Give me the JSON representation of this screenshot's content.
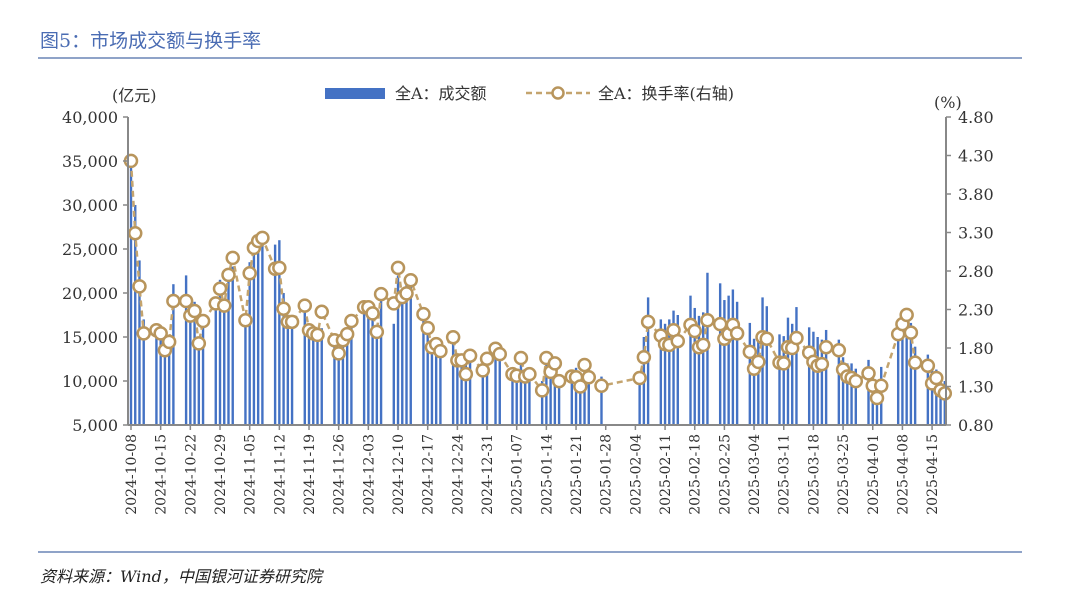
{
  "title": "图5：市场成交额与换手率",
  "source": "资料来源：Wind，中国银河证券研究院",
  "chart_data": {
    "type": "bar+line",
    "title": "图5：市场成交额与换手率",
    "left_axis": {
      "unit": "(亿元)",
      "range": [
        5000,
        40000
      ],
      "ticks": [
        "5,000",
        "10,000",
        "15,000",
        "20,000",
        "25,000",
        "30,000",
        "35,000",
        "40,000"
      ]
    },
    "right_axis": {
      "unit": "(%)",
      "range": [
        0.8,
        4.8
      ],
      "ticks": [
        "0.80",
        "1.30",
        "1.80",
        "2.30",
        "2.80",
        "3.30",
        "3.80",
        "4.30",
        "4.80"
      ]
    },
    "x_ticks": [
      "2024-10-08",
      "2024-10-15",
      "2024-10-22",
      "2024-10-29",
      "2024-11-05",
      "2024-11-12",
      "2024-11-19",
      "2024-11-26",
      "2024-12-03",
      "2024-12-10",
      "2024-12-17",
      "2024-12-24",
      "2024-12-31",
      "2025-01-07",
      "2025-01-14",
      "2025-01-21",
      "2025-01-28",
      "2025-02-04",
      "2025-02-11",
      "2025-02-18",
      "2025-02-25",
      "2025-03-04",
      "2025-03-11",
      "2025-03-18",
      "2025-03-25",
      "2025-04-01",
      "2025-04-08",
      "2025-04-15"
    ],
    "legend": {
      "position": "top",
      "bar": "全A：成交额",
      "line": "全A：换手率(右轴)"
    },
    "colors": {
      "bar": "#4472c4",
      "line": "#c4a46e",
      "marker_stroke": "#b8955c"
    },
    "dates": [
      "2024-10-08",
      "2024-10-09",
      "2024-10-10",
      "2024-10-11",
      "2024-10-14",
      "2024-10-15",
      "2024-10-16",
      "2024-10-17",
      "2024-10-18",
      "2024-10-21",
      "2024-10-22",
      "2024-10-23",
      "2024-10-24",
      "2024-10-25",
      "2024-10-28",
      "2024-10-29",
      "2024-10-30",
      "2024-10-31",
      "2024-11-01",
      "2024-11-04",
      "2024-11-05",
      "2024-11-06",
      "2024-11-07",
      "2024-11-08",
      "2024-11-11",
      "2024-11-12",
      "2024-11-13",
      "2024-11-14",
      "2024-11-15",
      "2024-11-18",
      "2024-11-19",
      "2024-11-20",
      "2024-11-21",
      "2024-11-22",
      "2024-11-25",
      "2024-11-26",
      "2024-11-27",
      "2024-11-28",
      "2024-11-29",
      "2024-12-02",
      "2024-12-03",
      "2024-12-04",
      "2024-12-05",
      "2024-12-06",
      "2024-12-09",
      "2024-12-10",
      "2024-12-11",
      "2024-12-12",
      "2024-12-13",
      "2024-12-16",
      "2024-12-17",
      "2024-12-18",
      "2024-12-19",
      "2024-12-20",
      "2024-12-23",
      "2024-12-24",
      "2024-12-25",
      "2024-12-26",
      "2024-12-27",
      "2024-12-30",
      "2024-12-31",
      "2025-01-02",
      "2025-01-03",
      "2025-01-06",
      "2025-01-07",
      "2025-01-08",
      "2025-01-09",
      "2025-01-10",
      "2025-01-13",
      "2025-01-14",
      "2025-01-15",
      "2025-01-16",
      "2025-01-17",
      "2025-01-20",
      "2025-01-21",
      "2025-01-22",
      "2025-01-23",
      "2025-01-24",
      "2025-01-27",
      "2025-02-05",
      "2025-02-06",
      "2025-02-07",
      "2025-02-10",
      "2025-02-11",
      "2025-02-12",
      "2025-02-13",
      "2025-02-14",
      "2025-02-17",
      "2025-02-18",
      "2025-02-19",
      "2025-02-20",
      "2025-02-21",
      "2025-02-24",
      "2025-02-25",
      "2025-02-26",
      "2025-02-27",
      "2025-02-28",
      "2025-03-03",
      "2025-03-04",
      "2025-03-05",
      "2025-03-06",
      "2025-03-07",
      "2025-03-10",
      "2025-03-11",
      "2025-03-12",
      "2025-03-13",
      "2025-03-14",
      "2025-03-17",
      "2025-03-18",
      "2025-03-19",
      "2025-03-20",
      "2025-03-21",
      "2025-03-24",
      "2025-03-25",
      "2025-03-26",
      "2025-03-27",
      "2025-03-28",
      "2025-03-31",
      "2025-04-01",
      "2025-04-02",
      "2025-04-03",
      "2025-04-07",
      "2025-04-08",
      "2025-04-09",
      "2025-04-10",
      "2025-04-11",
      "2025-04-14",
      "2025-04-15",
      "2025-04-16",
      "2025-04-17",
      "2025-04-18"
    ],
    "series": [
      {
        "name": "全A：成交额",
        "type": "bar",
        "axis": "left",
        "values": [
          34500,
          30000,
          23700,
          17000,
          16000,
          15500,
          14000,
          14500,
          21000,
          22000,
          18500,
          19000,
          14500,
          16500,
          19000,
          21500,
          18000,
          22500,
          23000,
          17500,
          23500,
          25500,
          26000,
          27000,
          25500,
          26000,
          20000,
          17500,
          17000,
          18500,
          16000,
          15500,
          15000,
          16000,
          14500,
          13500,
          14500,
          15000,
          16500,
          18500,
          18000,
          17000,
          15500,
          19500,
          16500,
          22000,
          20000,
          21000,
          21500,
          17000,
          15500,
          14000,
          14500,
          13500,
          14500,
          13000,
          13000,
          12000,
          13000,
          11500,
          12500,
          13500,
          13000,
          11000,
          11000,
          12500,
          10500,
          11500,
          10000,
          13000,
          12000,
          12500,
          10500,
          11000,
          11500,
          10000,
          12500,
          11500,
          10500,
          11000,
          15000,
          19500,
          17000,
          16500,
          17000,
          18000,
          17500,
          19700,
          18300,
          17400,
          17800,
          22300,
          21100,
          19200,
          19700,
          20400,
          19000,
          16600,
          14800,
          15400,
          19500,
          18500,
          15300,
          15100,
          17200,
          16500,
          18400,
          16100,
          15600,
          15000,
          14700,
          15800,
          14700,
          12700,
          12000,
          12000,
          11400,
          12400,
          11000,
          9300,
          11600,
          16500,
          15500,
          16500,
          16600,
          13900,
          13000,
          11600,
          11300,
          10800,
          10000
        ]
      },
      {
        "name": "全A：换手率(右轴)",
        "type": "line",
        "axis": "right",
        "values": [
          4.23,
          3.29,
          2.6,
          1.99,
          2.03,
          1.99,
          1.77,
          1.88,
          2.41,
          2.41,
          2.22,
          2.28,
          1.86,
          2.15,
          2.38,
          2.57,
          2.35,
          2.75,
          2.97,
          2.16,
          2.77,
          3.1,
          3.19,
          3.23,
          2.83,
          2.84,
          2.31,
          2.14,
          2.14,
          2.35,
          2.03,
          1.99,
          1.97,
          2.27,
          1.9,
          1.73,
          1.9,
          1.98,
          2.15,
          2.33,
          2.33,
          2.25,
          2.01,
          2.5,
          2.38,
          2.84,
          2.46,
          2.51,
          2.68,
          2.24,
          2.06,
          1.81,
          1.85,
          1.76,
          1.94,
          1.64,
          1.64,
          1.46,
          1.7,
          1.51,
          1.66,
          1.79,
          1.72,
          1.46,
          1.44,
          1.67,
          1.43,
          1.46,
          1.25,
          1.67,
          1.49,
          1.6,
          1.37,
          1.43,
          1.42,
          1.3,
          1.58,
          1.42,
          1.31,
          1.41,
          1.68,
          2.14,
          1.96,
          1.85,
          1.84,
          2.03,
          1.89,
          2.1,
          2.02,
          1.81,
          1.84,
          2.16,
          2.11,
          1.92,
          1.98,
          2.1,
          1.99,
          1.75,
          1.53,
          1.62,
          1.94,
          1.92,
          1.61,
          1.6,
          1.81,
          1.8,
          1.93,
          1.74,
          1.62,
          1.57,
          1.59,
          1.81,
          1.77,
          1.52,
          1.43,
          1.41,
          1.37,
          1.47,
          1.31,
          1.15,
          1.31,
          1.98,
          2.11,
          2.23,
          2.0,
          1.61,
          1.57,
          1.34,
          1.41,
          1.25,
          1.21
        ]
      }
    ]
  }
}
